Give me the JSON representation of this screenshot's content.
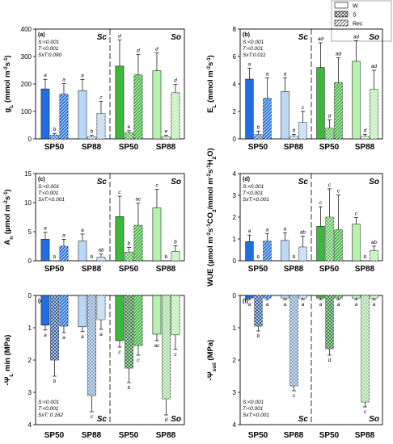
{
  "legend": [
    {
      "label": "W",
      "pattern": "solid"
    },
    {
      "label": "S",
      "pattern": "cross"
    },
    {
      "label": "Rec",
      "pattern": "diag"
    }
  ],
  "colors": {
    "SP50_Sc": "#1f6fe0",
    "SP88_Sc": "#b8d8f5",
    "SP50_So": "#3cb83c",
    "SP88_So": "#b8f0b0",
    "SP50_Sc_neg": "#0a3d91",
    "SP88_Sc_neg": "#6b94c2",
    "SP50_So_neg": "#0a6b18",
    "SP88_So_neg": "#8fd68a"
  },
  "chart_data": [
    {
      "panel": "(a)",
      "type": "bar",
      "ylabel": "gL (mmol m-2s-1)",
      "ylim": [
        0,
        400
      ],
      "yticks": [
        0,
        100,
        200,
        300,
        400
      ],
      "stats": [
        "S:<0.001",
        "T:<0.001",
        "SxT:0.090"
      ],
      "regions": [
        "Sc",
        "So"
      ],
      "categories": [
        "SP50",
        "SP88",
        "SP50",
        "SP88"
      ],
      "series": [
        {
          "name": "W",
          "values": [
            182,
            176,
            265,
            248
          ],
          "errors": [
            35,
            40,
            95,
            65
          ],
          "letters": [
            "a",
            "a",
            "d",
            "d"
          ]
        },
        {
          "name": "S",
          "values": [
            14,
            8,
            22,
            8
          ],
          "errors": [
            6,
            5,
            8,
            5
          ],
          "letters": [
            "b",
            "b",
            "e",
            "e"
          ]
        },
        {
          "name": "Rec",
          "values": [
            163,
            92,
            233,
            168
          ],
          "errors": [
            38,
            45,
            75,
            30
          ],
          "letters": [
            "a",
            "c",
            "d",
            "d"
          ]
        }
      ]
    },
    {
      "panel": "(b)",
      "type": "bar",
      "ylabel": "EL (mmol m-2s-1)",
      "ylim": [
        0,
        8
      ],
      "yticks": [
        0,
        2,
        4,
        6,
        8
      ],
      "stats": [
        "S:<0.001",
        "T:<0.001",
        "SxT:0.011"
      ],
      "regions": [
        "Sc",
        "So"
      ],
      "categories": [
        "SP50",
        "SP88",
        "SP50",
        "SP88"
      ],
      "series": [
        {
          "name": "W",
          "values": [
            4.35,
            3.45,
            5.2,
            5.65
          ],
          "errors": [
            0.8,
            1.0,
            1.8,
            1.5
          ],
          "letters": [
            "a",
            "a",
            "ad",
            "ad"
          ]
        },
        {
          "name": "S",
          "values": [
            0.32,
            0.18,
            0.78,
            0.18
          ],
          "errors": [
            0.25,
            0.15,
            0.6,
            0.15
          ],
          "letters": [
            "b",
            "b",
            "d",
            "d"
          ]
        },
        {
          "name": "Rec",
          "values": [
            2.95,
            1.2,
            4.1,
            3.6
          ],
          "errors": [
            1.5,
            0.8,
            1.8,
            1.4
          ],
          "letters": [
            "a",
            "c",
            "ad",
            "ad"
          ]
        }
      ]
    },
    {
      "panel": "(c)",
      "type": "bar",
      "ylabel": "An (µmol m-2s-1)",
      "ylim": [
        0,
        15
      ],
      "yticks": [
        0,
        5,
        10,
        15
      ],
      "stats": [
        "S:<0.001",
        "T:<0.001",
        "SxT:<0.001"
      ],
      "regions": [
        "Sc",
        "So"
      ],
      "categories": [
        "SP50",
        "SP88",
        "SP50",
        "SP88"
      ],
      "series": [
        {
          "name": "W",
          "values": [
            3.7,
            3.4,
            7.6,
            9.1
          ],
          "errors": [
            1.2,
            1.2,
            3.5,
            3.2
          ],
          "letters": [
            "a",
            "a",
            "c",
            "c"
          ]
        },
        {
          "name": "S",
          "values": [
            0,
            0,
            1.5,
            0
          ],
          "errors": [
            0,
            0,
            0.8,
            0
          ],
          "letters": [
            "b",
            "b",
            "b",
            "b"
          ]
        },
        {
          "name": "Rec",
          "values": [
            2.5,
            0.65,
            6.1,
            1.6
          ],
          "errors": [
            1.2,
            0.5,
            3.8,
            1.0
          ],
          "letters": [
            "a",
            "ab",
            "ac",
            "b"
          ]
        }
      ]
    },
    {
      "panel": "(d)",
      "type": "bar",
      "ylabel": "WUE (µmol m-2s-1CO2/mmol m-2s-1H2O)",
      "ylim": [
        0,
        4
      ],
      "yticks": [
        0,
        1,
        2,
        3,
        4
      ],
      "stats": [
        "S:<0.001",
        "T:<0.001",
        "SxT:<0.001"
      ],
      "regions": [
        "Sc",
        "So"
      ],
      "categories": [
        "SP50",
        "SP88",
        "SP50",
        "SP88"
      ],
      "series": [
        {
          "name": "W",
          "values": [
            0.88,
            0.93,
            1.58,
            1.68
          ],
          "errors": [
            0.3,
            0.35,
            0.9,
            0.3
          ],
          "letters": [
            "a",
            "a",
            "c",
            "c"
          ]
        },
        {
          "name": "S",
          "values": [
            0,
            0,
            2.0,
            0
          ],
          "errors": [
            0,
            0,
            1.3,
            0
          ],
          "letters": [
            "b",
            "b",
            "c",
            "b"
          ]
        },
        {
          "name": "Rec",
          "values": [
            0.9,
            0.63,
            1.42,
            0.47
          ],
          "errors": [
            0.35,
            0.5,
            1.6,
            0.2
          ],
          "letters": [
            "a",
            "ab",
            "c",
            "ab"
          ]
        }
      ]
    },
    {
      "panel": "(e)",
      "type": "bar",
      "ylabel": "-ΨL min (MPa)",
      "inverted": true,
      "ylim": [
        0,
        4
      ],
      "yticks": [
        0,
        1,
        2,
        3,
        4
      ],
      "stats": [
        "S:<0.001",
        "T:<0.001",
        "SxT: 0.162"
      ],
      "regions": [
        "Sc",
        "So"
      ],
      "categories": [
        "SP50",
        "SP88",
        "SP50",
        "SP88"
      ],
      "series": [
        {
          "name": "W",
          "values": [
            0.92,
            0.97,
            1.4,
            1.2
          ],
          "errors": [
            0.15,
            0.15,
            0.2,
            0.2
          ],
          "letters": [
            "a",
            "a",
            "c",
            "ac"
          ]
        },
        {
          "name": "S",
          "values": [
            2.0,
            3.1,
            2.25,
            3.2
          ],
          "errors": [
            0.5,
            0.5,
            0.45,
            0.5
          ],
          "letters": [
            "b",
            "c",
            "b",
            "d"
          ]
        },
        {
          "name": "Rec",
          "values": [
            0.95,
            0.75,
            1.55,
            1.22
          ],
          "errors": [
            0.2,
            0.3,
            0.3,
            0.45
          ],
          "letters": [
            "a",
            "a",
            "c",
            "c"
          ]
        }
      ]
    },
    {
      "panel": "(f)",
      "type": "bar",
      "ylabel": "-Ψsoil (MPa)",
      "inverted": true,
      "ylim": [
        0,
        4
      ],
      "yticks": [
        0,
        1,
        2,
        3,
        4
      ],
      "stats": [
        "S:<0.001",
        "T:<0.001",
        "SxT:<0.001"
      ],
      "regions": [
        "Sc",
        "So"
      ],
      "categories": [
        "SP50",
        "SP88",
        "SP50",
        "SP88"
      ],
      "series": [
        {
          "name": "W",
          "values": [
            0.08,
            0.08,
            0.08,
            0.08
          ],
          "errors": [
            0.05,
            0.05,
            0.05,
            0.05
          ],
          "letters": [
            "a",
            "a",
            "a",
            "a"
          ]
        },
        {
          "name": "S",
          "values": [
            0.95,
            2.8,
            1.65,
            3.3
          ],
          "errors": [
            0.15,
            0.15,
            0.2,
            0.15
          ],
          "letters": [
            "b",
            "c",
            "d",
            "c"
          ]
        },
        {
          "name": "Rec",
          "values": [
            0.08,
            0.08,
            0.08,
            0.08
          ],
          "errors": [
            0.05,
            0.05,
            0.05,
            0.05
          ],
          "letters": [
            "a",
            "a",
            "a",
            "a"
          ]
        }
      ]
    }
  ]
}
